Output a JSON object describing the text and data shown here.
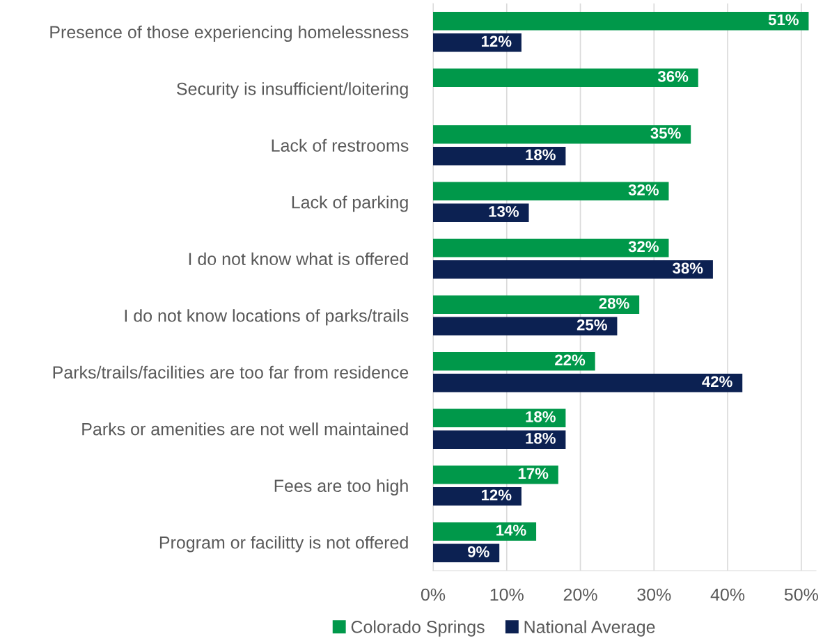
{
  "chart_data": {
    "type": "bar",
    "orientation": "horizontal",
    "categories": [
      "Presence of those experiencing homelessness",
      "Security is insufficient/loitering",
      "Lack of restrooms",
      "Lack of parking",
      "I do not know what is offered",
      "I do not know locations of parks/trails",
      "Parks/trails/facilities are too far from residence",
      "Parks or amenities are not well maintained",
      "Fees are too high",
      "Program or facilitty is not offered"
    ],
    "series": [
      {
        "name": "Colorado Springs",
        "color": "#00984a",
        "values": [
          51,
          36,
          35,
          32,
          32,
          28,
          22,
          18,
          17,
          14
        ],
        "value_labels": [
          "51%",
          "36%",
          "35%",
          "32%",
          "32%",
          "28%",
          "22%",
          "18%",
          "17%",
          "14%"
        ]
      },
      {
        "name": "National Average",
        "color": "#0c2152",
        "values": [
          12,
          null,
          18,
          13,
          38,
          25,
          42,
          18,
          12,
          9
        ],
        "value_labels": [
          "12%",
          null,
          "18%",
          "13%",
          "38%",
          "25%",
          "42%",
          "18%",
          "12%",
          "9%"
        ]
      }
    ],
    "xlim": [
      0,
      52
    ],
    "xticks": [
      {
        "value": 0,
        "label": "0%"
      },
      {
        "value": 10,
        "label": "10%"
      },
      {
        "value": 20,
        "label": "20%"
      },
      {
        "value": 30,
        "label": "30%"
      },
      {
        "value": 40,
        "label": "40%"
      },
      {
        "value": 50,
        "label": "50%"
      }
    ],
    "grid": "x",
    "legend": "bottom"
  }
}
